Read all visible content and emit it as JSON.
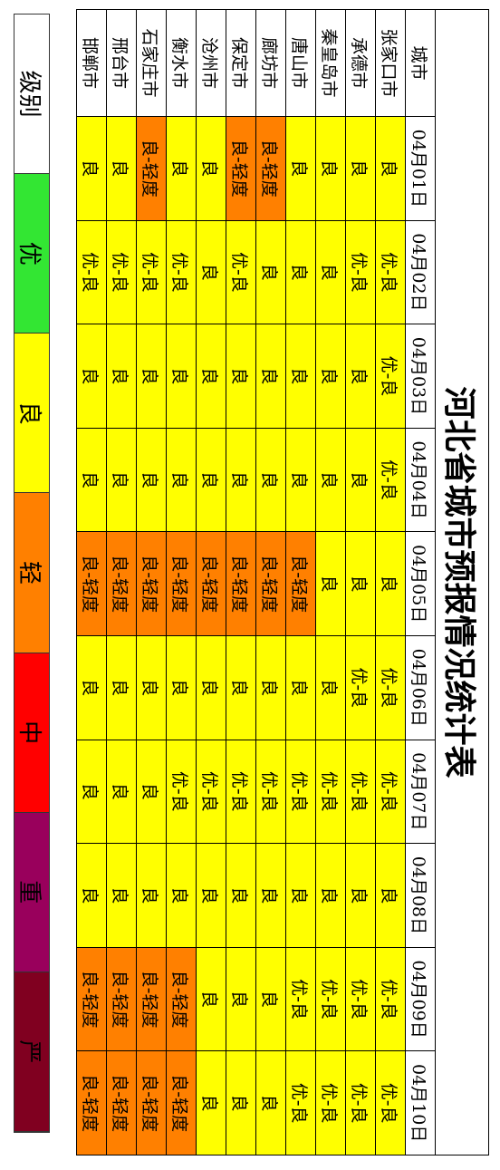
{
  "title": "河北省城市预报情况统计表",
  "table": {
    "header": [
      "城市",
      "04月01日",
      "04月02日",
      "04月03日",
      "04月04日",
      "04月05日",
      "04月06日",
      "04月07日",
      "04月08日",
      "04月09日",
      "04月10日"
    ],
    "rows": [
      [
        "张家口市",
        "良",
        "优-良",
        "优-良",
        "优-良",
        "良",
        "优-良",
        "优-良",
        "良",
        "优-良",
        "优-良"
      ],
      [
        "承德市",
        "良",
        "优-良",
        "良",
        "良",
        "良",
        "优-良",
        "优-良",
        "良",
        "优-良",
        "优-良"
      ],
      [
        "秦皇岛市",
        "良",
        "良",
        "良",
        "良",
        "良",
        "良",
        "优-良",
        "良",
        "优-良",
        "优-良"
      ],
      [
        "唐山市",
        "良",
        "良",
        "良",
        "良",
        "良-轻度",
        "良",
        "优-良",
        "良",
        "优-良",
        "优-良"
      ],
      [
        "廊坊市",
        "良-轻度",
        "良",
        "良",
        "良",
        "良-轻度",
        "良",
        "优-良",
        "良",
        "良",
        "良"
      ],
      [
        "保定市",
        "良-轻度",
        "优-良",
        "良",
        "良",
        "良-轻度",
        "良",
        "优-良",
        "良",
        "良",
        "良"
      ],
      [
        "沧州市",
        "良",
        "良",
        "良",
        "良",
        "良-轻度",
        "良",
        "优-良",
        "良",
        "良",
        "良"
      ],
      [
        "衡水市",
        "良",
        "优-良",
        "良",
        "良",
        "良-轻度",
        "良",
        "优-良",
        "良",
        "良-轻度",
        "良-轻度"
      ],
      [
        "石家庄市",
        "良-轻度",
        "优-良",
        "良",
        "良",
        "良-轻度",
        "良",
        "良",
        "良",
        "良-轻度",
        "良-轻度"
      ],
      [
        "邢台市",
        "良",
        "优-良",
        "良",
        "良",
        "良-轻度",
        "良",
        "良",
        "良",
        "良-轻度",
        "良-轻度"
      ],
      [
        "邯郸市",
        "良",
        "优-良",
        "良",
        "良",
        "良-轻度",
        "良",
        "良",
        "良",
        "良-轻度",
        "良-轻度"
      ]
    ]
  },
  "legend": [
    {
      "label": "级别",
      "color": "#ffffff"
    },
    {
      "label": "优",
      "color": "#33e633"
    },
    {
      "label": "良",
      "color": "#ffff00"
    },
    {
      "label": "轻",
      "color": "#ff8000"
    },
    {
      "label": "中",
      "color": "#ff0000"
    },
    {
      "label": "重",
      "color": "#99005c"
    },
    {
      "label": "严",
      "color": "#800020"
    }
  ]
}
